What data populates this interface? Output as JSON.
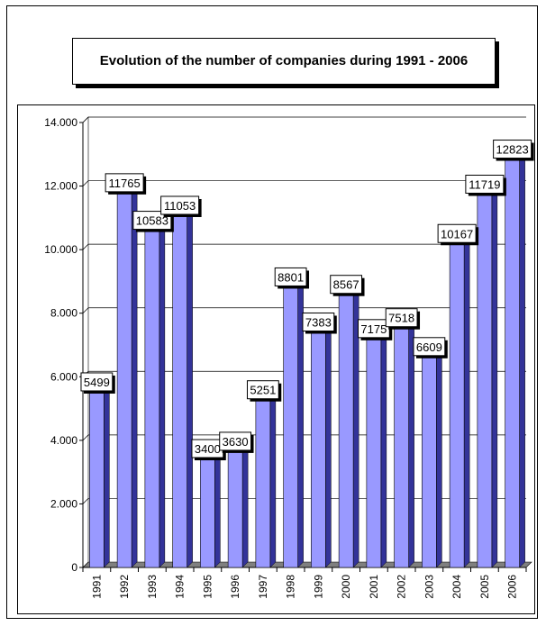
{
  "chart_data": {
    "type": "bar",
    "title": "Evolution of the number of companies during 1991 - 2006",
    "xlabel": "",
    "ylabel": "",
    "categories": [
      "1991",
      "1992",
      "1993",
      "1994",
      "1995",
      "1996",
      "1997",
      "1998",
      "1999",
      "2000",
      "2001",
      "2002",
      "2003",
      "2004",
      "2005",
      "2006"
    ],
    "values": [
      5499,
      11765,
      10583,
      11053,
      3400,
      3630,
      5251,
      8801,
      7383,
      8567,
      7175,
      7518,
      6609,
      10167,
      11719,
      12823
    ],
    "data_labels": [
      "5499",
      "11765",
      "10583",
      "11053",
      "3400",
      "3630",
      "5251",
      "8801",
      "7383",
      "8567",
      "7175",
      "7518",
      "6609",
      "10167",
      "11719",
      "12823"
    ],
    "ylim": [
      0,
      14000
    ],
    "yticks": [
      0,
      2000,
      4000,
      6000,
      8000,
      10000,
      12000,
      14000
    ],
    "ytick_labels": [
      "0",
      "2.000",
      "4.000",
      "6.000",
      "8.000",
      "10.000",
      "12.000",
      "14.000"
    ],
    "grid": true,
    "legend": "none",
    "colors": {
      "bar_front": "#9999ff",
      "bar_side": "#333399",
      "bar_top": "#666699",
      "floor": "#808080",
      "wall": "#ffffff",
      "grid": "#000000"
    }
  }
}
